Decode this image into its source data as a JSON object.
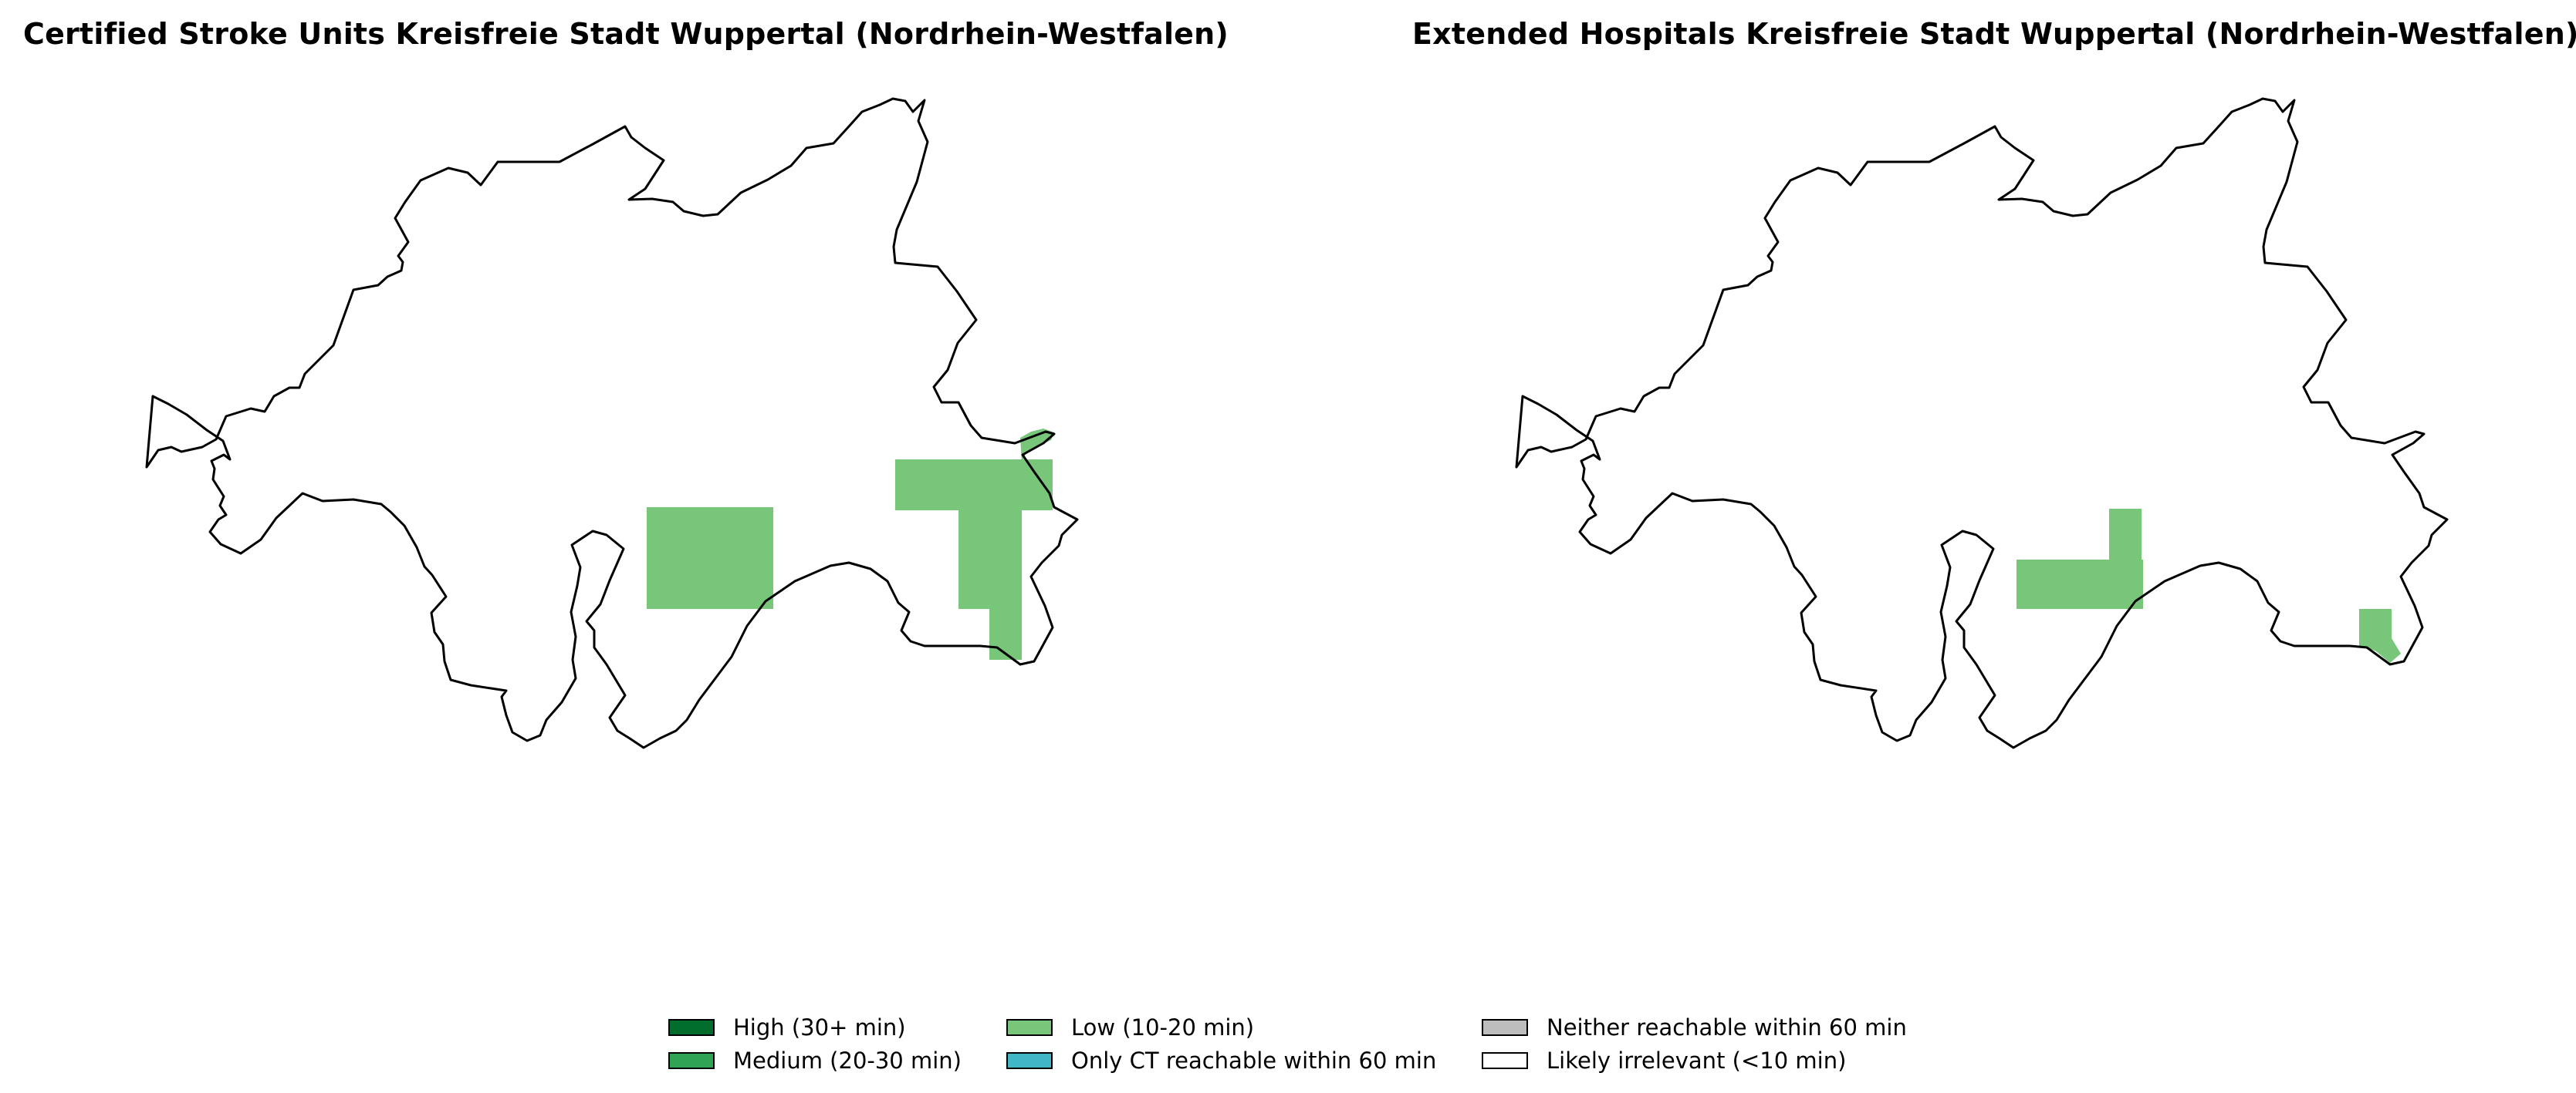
{
  "maps": [
    {
      "title": "Certified Stroke Units Kreisfreie Stadt Wuppertal (Nordrhein-Westfalen)"
    },
    {
      "title": "Extended Hospitals Kreisfreie Stadt Wuppertal (Nordrhein-Westfalen)"
    }
  ],
  "legend": [
    {
      "label": "High (30+ min)",
      "color": "#006d2c"
    },
    {
      "label": "Medium (20-30 min)",
      "color": "#31a354"
    },
    {
      "label": "Low (10-20 min)",
      "color": "#78c679"
    },
    {
      "label": "Only CT reachable within 60 min",
      "color": "#41b6c4"
    },
    {
      "label": "Neither reachable within 60 min",
      "color": "#bdbdbd"
    },
    {
      "label": "Likely irrelevant (<10 min)",
      "color": "#ffffff"
    }
  ]
}
